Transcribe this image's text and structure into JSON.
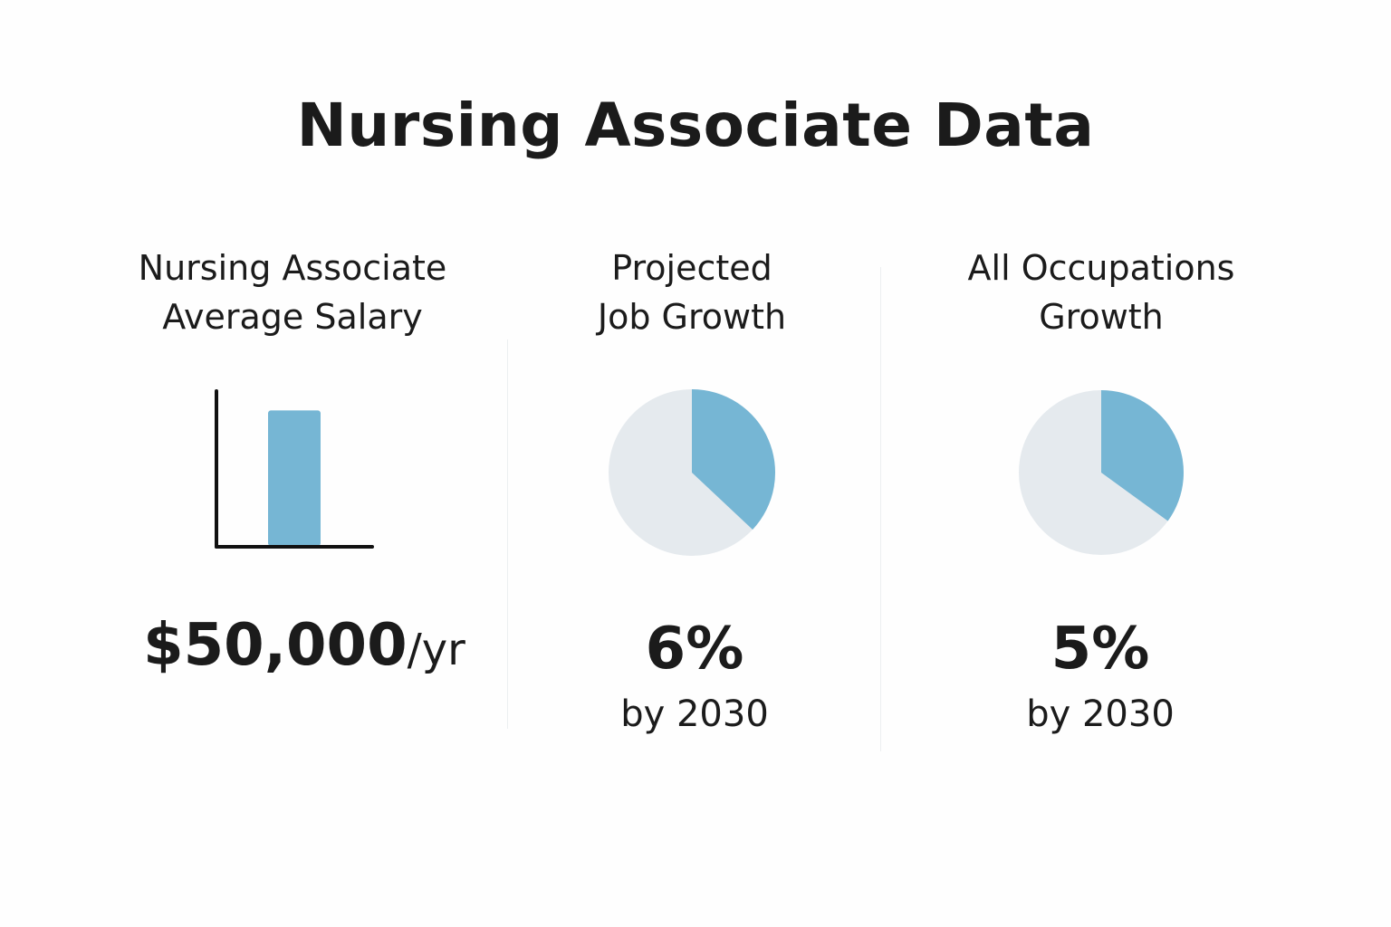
{
  "title": "Nursing Associate Data",
  "colors": {
    "accent": "#76b6d4",
    "pie_rest": "#e5eaee",
    "axis": "#111111"
  },
  "panels": [
    {
      "heading_line1": "Nursing Associate",
      "heading_line2": "Average Salary",
      "value": "$50,000",
      "value_unit": "/yr"
    },
    {
      "heading_line1": "Projected",
      "heading_line2": "Job Growth",
      "value": "6%",
      "caption": "by 2030"
    },
    {
      "heading_line1": "All Occupations",
      "heading_line2": "Growth",
      "value": "5%",
      "caption": "by 2030"
    }
  ],
  "chart_data": [
    {
      "type": "bar",
      "categories": [
        "Nursing Associate"
      ],
      "values": [
        50000
      ],
      "ylim": [
        0,
        57500
      ],
      "title": "Nursing Associate Average Salary",
      "xlabel": "",
      "ylabel": ""
    },
    {
      "type": "pie",
      "title": "Projected Job Growth",
      "slices": [
        {
          "label": "highlight",
          "fraction": 0.37
        },
        {
          "label": "rest",
          "fraction": 0.63
        }
      ]
    },
    {
      "type": "pie",
      "title": "All Occupations Growth",
      "slices": [
        {
          "label": "highlight",
          "fraction": 0.35
        },
        {
          "label": "rest",
          "fraction": 0.65
        }
      ]
    }
  ]
}
